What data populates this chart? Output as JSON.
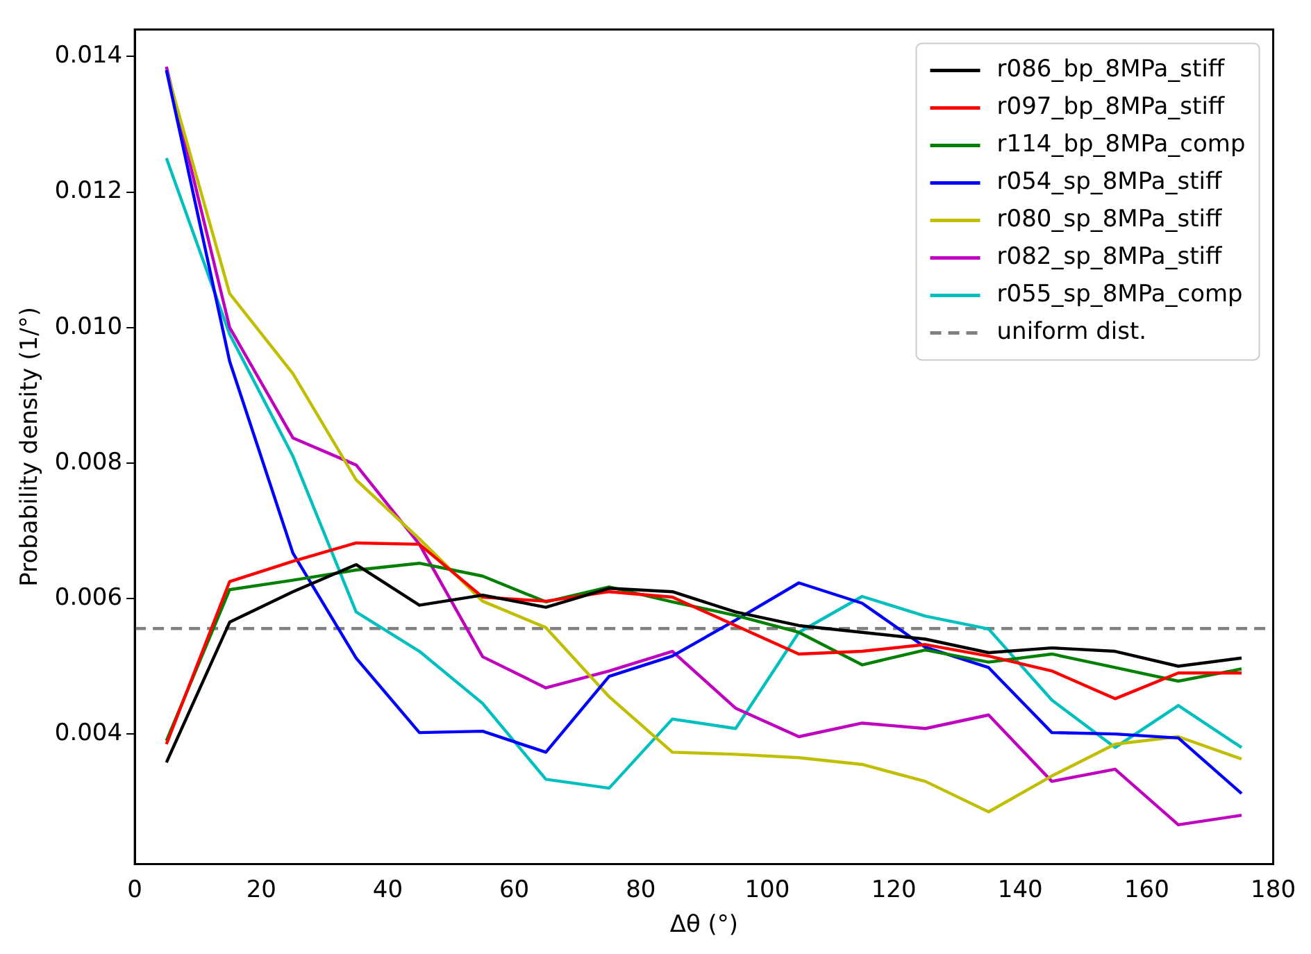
{
  "chart_data": {
    "type": "line",
    "xlabel": "Δθ (°)",
    "ylabel": "Probability density (1/°)",
    "x": [
      5,
      15,
      25,
      35,
      45,
      55,
      65,
      75,
      85,
      95,
      105,
      115,
      125,
      135,
      145,
      155,
      165,
      175
    ],
    "xlim": [
      0,
      180
    ],
    "xticks": [
      0,
      20,
      40,
      60,
      80,
      100,
      120,
      140,
      160,
      180
    ],
    "ylim": [
      0.00208,
      0.0144
    ],
    "yticks": [
      {
        "value": 0.004,
        "label": "0.004"
      },
      {
        "value": 0.006,
        "label": "0.006"
      },
      {
        "value": 0.008,
        "label": "0.008"
      },
      {
        "value": 0.01,
        "label": "0.010"
      },
      {
        "value": 0.012,
        "label": "0.012"
      },
      {
        "value": 0.014,
        "label": "0.014"
      }
    ],
    "legend": "top right",
    "grid": false,
    "marker": "none",
    "line_style": "solid",
    "series": [
      {
        "name": "r086_bp_8MPa_stiff",
        "color": "#000000",
        "values": [
          0.00358,
          0.00565,
          0.0061,
          0.0065,
          0.0059,
          0.00605,
          0.00587,
          0.00615,
          0.0061,
          0.0058,
          0.0056,
          0.0055,
          0.0054,
          0.0052,
          0.00527,
          0.00522,
          0.005,
          0.00512
        ]
      },
      {
        "name": "r097_bp_8MPa_stiff",
        "color": "#ff0000",
        "values": [
          0.00385,
          0.00625,
          0.00655,
          0.00682,
          0.0068,
          0.00602,
          0.00596,
          0.0061,
          0.00602,
          0.0056,
          0.00518,
          0.00522,
          0.00532,
          0.00515,
          0.00493,
          0.00452,
          0.0049,
          0.0049
        ]
      },
      {
        "name": "r114_bp_8MPa_comp",
        "color": "#008000",
        "values": [
          0.0039,
          0.00613,
          0.00627,
          0.00642,
          0.00652,
          0.00633,
          0.00595,
          0.00617,
          0.00595,
          0.00575,
          0.0055,
          0.00502,
          0.00524,
          0.00506,
          0.00518,
          0.00498,
          0.00478,
          0.00496
        ]
      },
      {
        "name": "r054_sp_8MPa_stiff",
        "color": "#0000ff",
        "values": [
          0.0138,
          0.0095,
          0.00667,
          0.00512,
          0.00402,
          0.00404,
          0.00373,
          0.00485,
          0.00515,
          0.00568,
          0.00623,
          0.00593,
          0.00528,
          0.00498,
          0.00402,
          0.004,
          0.00394,
          0.00312
        ]
      },
      {
        "name": "r080_sp_8MPa_stiff",
        "color": "#bfbf00",
        "values": [
          0.0138,
          0.0105,
          0.00932,
          0.00775,
          0.00688,
          0.00596,
          0.00557,
          0.00455,
          0.00373,
          0.0037,
          0.00365,
          0.00355,
          0.0033,
          0.00285,
          0.00338,
          0.00385,
          0.00396,
          0.00363
        ]
      },
      {
        "name": "r082_sp_8MPa_stiff",
        "color": "#bf00bf",
        "values": [
          0.01385,
          0.01,
          0.00837,
          0.00797,
          0.0068,
          0.00514,
          0.00468,
          0.00493,
          0.00522,
          0.00438,
          0.00396,
          0.00416,
          0.00408,
          0.00428,
          0.0033,
          0.00348,
          0.00266,
          0.0028
        ]
      },
      {
        "name": "r055_sp_8MPa_comp",
        "color": "#00bfbf",
        "values": [
          0.0125,
          0.0099,
          0.0081,
          0.0058,
          0.00522,
          0.00445,
          0.00333,
          0.0032,
          0.00422,
          0.00408,
          0.0055,
          0.00603,
          0.00574,
          0.00555,
          0.0045,
          0.0038,
          0.00442,
          0.0038
        ]
      },
      {
        "name": "uniform dist.",
        "color": "#808080",
        "line_style": "dashed",
        "x": [
          0,
          180
        ],
        "values": [
          0.005556,
          0.005556
        ]
      }
    ]
  }
}
